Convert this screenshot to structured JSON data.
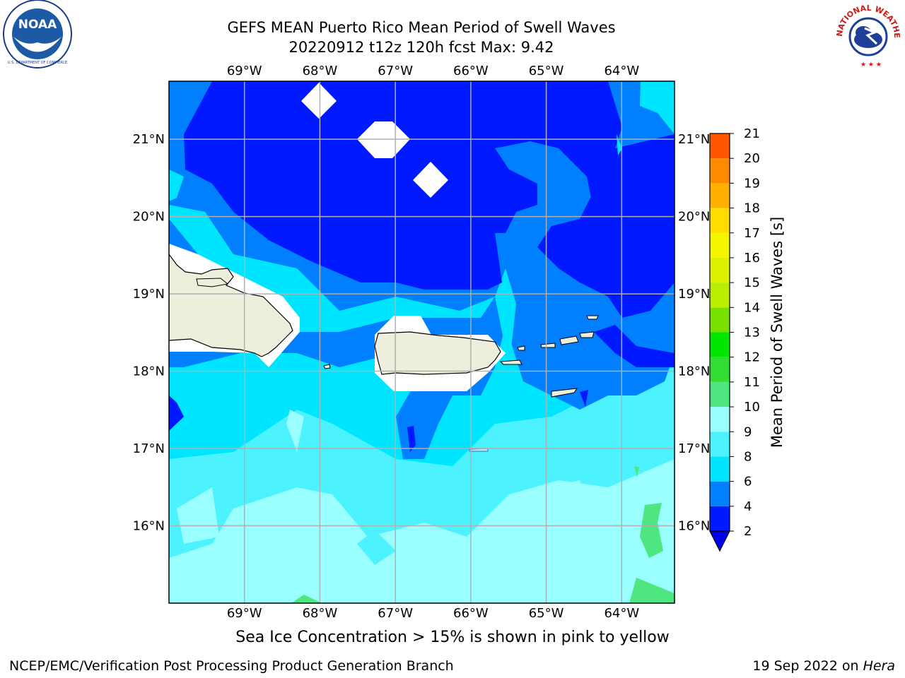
{
  "title_line1": "GEFS MEAN Puerto Rico Mean Period of Swell Waves",
  "title_line2": "20220912 t12z 120h fcst   Max: 9.42",
  "map": {
    "lon_labels": [
      "69°W",
      "68°W",
      "67°W",
      "66°W",
      "65°W",
      "64°W"
    ],
    "lat_labels": [
      "21°N",
      "20°N",
      "19°N",
      "18°N",
      "17°N",
      "16°N"
    ],
    "lon_range": [
      -70,
      -63.3
    ],
    "lat_range": [
      15.0,
      21.75
    ]
  },
  "colorbar": {
    "label": "Mean Period of Swell Waves [s]",
    "ticks": [
      "2",
      "4",
      "6",
      "8",
      "9",
      "10",
      "11",
      "12",
      "13",
      "14",
      "15",
      "16",
      "17",
      "18",
      "19",
      "20",
      "21"
    ],
    "colors": [
      "#0019ff",
      "#0080ff",
      "#00e5ff",
      "#4df2ff",
      "#99ffff",
      "#4de680",
      "#33dd33",
      "#00e600",
      "#7ae000",
      "#bbee00",
      "#ddf000",
      "#f5f500",
      "#ffdd00",
      "#ffb000",
      "#ff8a00",
      "#ff5500",
      "#ff1a00"
    ],
    "extend_color": "#0000ee"
  },
  "ice_note": "Sea Ice Concentration > 15% is shown in pink to yellow",
  "footer_left": "NCEP/EMC/Verification Post Processing Product Generation Branch",
  "footer_right_prefix": "19 Sep 2022 on ",
  "footer_right_host": "Hera",
  "logos": {
    "left": "NOAA",
    "right": "NATIONAL WEATHER SERVICE"
  }
}
